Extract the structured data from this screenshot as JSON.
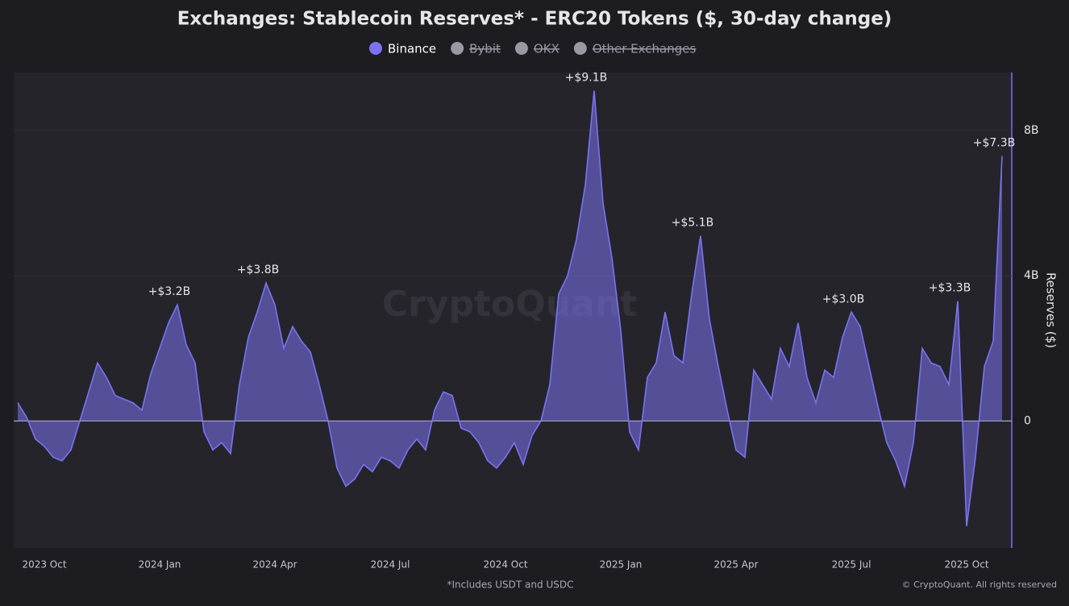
{
  "chart_data": {
    "type": "area",
    "title": "Exchanges: Stablecoin Reserves* - ERC20 Tokens ($, 30-day change)",
    "footnote": "*Includes USDT and USDC",
    "copyright": "© CryptoQuant. All rights reserved",
    "watermark": "CryptoQuant",
    "y_label": "Reserves ($)",
    "ylim": [
      -3500000000.0,
      9600000000.0
    ],
    "yticks": [
      0,
      {
        "value": 4000000000.0,
        "label": "4B"
      },
      {
        "value": 8000000000.0,
        "label": "8B"
      }
    ],
    "grid": true,
    "categories": [
      null,
      null,
      null,
      "2023 Oct",
      null,
      null,
      null,
      null,
      null,
      null,
      null,
      null,
      null,
      null,
      null,
      null,
      "2024 Jan",
      null,
      null,
      null,
      null,
      null,
      null,
      null,
      null,
      null,
      null,
      null,
      null,
      "2024 Apr",
      null,
      null,
      null,
      null,
      null,
      null,
      null,
      null,
      null,
      null,
      null,
      null,
      "2024 Jul",
      null,
      null,
      null,
      null,
      null,
      null,
      null,
      null,
      null,
      null,
      null,
      null,
      "2024 Oct",
      null,
      null,
      null,
      null,
      null,
      null,
      null,
      null,
      null,
      null,
      null,
      null,
      "2025 Jan",
      null,
      null,
      null,
      null,
      null,
      null,
      null,
      null,
      null,
      null,
      null,
      null,
      "2025 Apr",
      null,
      null,
      null,
      null,
      null,
      null,
      null,
      null,
      null,
      null,
      null,
      null,
      "2025 Jul",
      null,
      null,
      null,
      null,
      null,
      null,
      null,
      null,
      null,
      null,
      null,
      null,
      "2025 Oct",
      null,
      null,
      null,
      null
    ],
    "series": [
      {
        "name": "Binance",
        "color": "#7b73f0",
        "visible": true,
        "values": [
          500000000.0,
          100000000.0,
          -500000000.0,
          -700000000.0,
          -1000000000.0,
          -1100000000.0,
          -800000000.0,
          0.0,
          800000000.0,
          1600000000.0,
          1200000000.0,
          700000000.0,
          600000000.0,
          500000000.0,
          300000000.0,
          1300000000.0,
          2000000000.0,
          2700000000.0,
          3200000000.0,
          2100000000.0,
          1600000000.0,
          -300000000.0,
          -800000000.0,
          -600000000.0,
          -900000000.0,
          1000000000.0,
          2300000000.0,
          3000000000.0,
          3800000000.0,
          3200000000.0,
          2000000000.0,
          2600000000.0,
          2200000000.0,
          1900000000.0,
          1000000000.0,
          0.0,
          -1300000000.0,
          -1800000000.0,
          -1600000000.0,
          -1200000000.0,
          -1400000000.0,
          -1000000000.0,
          -1100000000.0,
          -1300000000.0,
          -800000000.0,
          -500000000.0,
          -800000000.0,
          300000000.0,
          800000000.0,
          700000000.0,
          -200000000.0,
          -300000000.0,
          -600000000.0,
          -1100000000.0,
          -1300000000.0,
          -1000000000.0,
          -600000000.0,
          -1200000000.0,
          -400000000.0,
          0.0,
          1000000000.0,
          3500000000.0,
          4000000000.0,
          5000000000.0,
          6500000000.0,
          9100000000.0,
          6000000000.0,
          4500000000.0,
          2500000000.0,
          -300000000.0,
          -800000000.0,
          1200000000.0,
          1600000000.0,
          3000000000.0,
          1800000000.0,
          1600000000.0,
          3500000000.0,
          5100000000.0,
          2800000000.0,
          1500000000.0,
          300000000.0,
          -800000000.0,
          -1000000000.0,
          1400000000.0,
          1000000000.0,
          600000000.0,
          2000000000.0,
          1500000000.0,
          2700000000.0,
          1200000000.0,
          500000000.0,
          1400000000.0,
          1200000000.0,
          2300000000.0,
          3000000000.0,
          2600000000.0,
          1500000000.0,
          400000000.0,
          -600000000.0,
          -1100000000.0,
          -1800000000.0,
          -600000000.0,
          2000000000.0,
          1600000000.0,
          1500000000.0,
          1000000000.0,
          3300000000.0,
          -2900000000.0,
          -1000000000.0,
          1500000000.0,
          2200000000.0,
          7300000000.0
        ],
        "value_labels": [
          null,
          null,
          null,
          null,
          null,
          null,
          null,
          null,
          null,
          null,
          null,
          null,
          null,
          null,
          null,
          null,
          null,
          null,
          "+$3.2B",
          null,
          null,
          null,
          null,
          null,
          null,
          null,
          null,
          null,
          "+$3.8B",
          null,
          null,
          null,
          null,
          null,
          null,
          null,
          null,
          null,
          null,
          null,
          null,
          null,
          null,
          null,
          null,
          null,
          null,
          null,
          null,
          null,
          null,
          null,
          null,
          null,
          null,
          null,
          null,
          null,
          null,
          null,
          null,
          null,
          null,
          null,
          null,
          "+$9.1B",
          null,
          null,
          null,
          null,
          null,
          null,
          null,
          null,
          null,
          null,
          null,
          "+$5.1B",
          null,
          null,
          null,
          null,
          null,
          null,
          null,
          null,
          null,
          null,
          null,
          null,
          null,
          null,
          null,
          null,
          "+$3.0B",
          null,
          null,
          null,
          null,
          null,
          null,
          null,
          null,
          null,
          null,
          null,
          "+$3.3B",
          null,
          null,
          null,
          null,
          "+$7.3B"
        ]
      },
      {
        "name": "Bybit",
        "color": "#9a99a3",
        "visible": false
      },
      {
        "name": "OKX",
        "color": "#9a99a3",
        "visible": false
      },
      {
        "name": "Other Exchanges",
        "color": "#9a99a3",
        "visible": false
      }
    ]
  }
}
